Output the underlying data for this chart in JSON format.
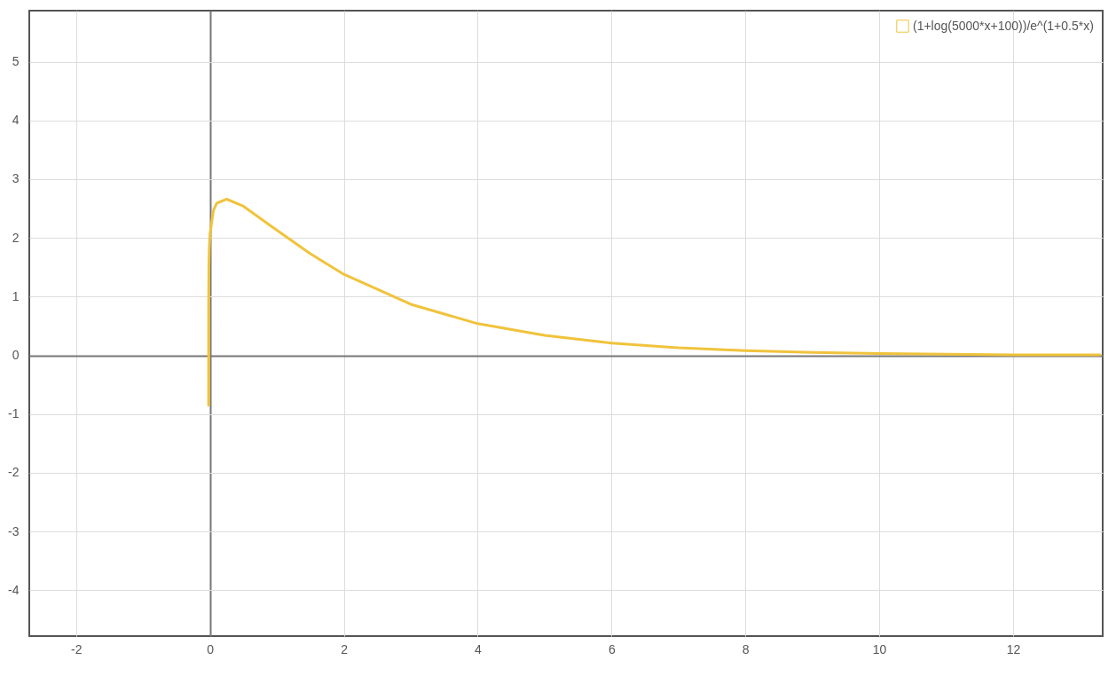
{
  "chart_data": {
    "type": "line",
    "legend": "top right",
    "grid": true,
    "marker": "none",
    "line_style": "solid",
    "xlim": [
      -2.7,
      13.34
    ],
    "ylim": [
      -4.78,
      5.87
    ],
    "xticks": [
      -2,
      0,
      2,
      4,
      6,
      8,
      10,
      12
    ],
    "yticks": [
      -4,
      -3,
      -2,
      -1,
      0,
      1,
      2,
      3,
      4,
      5
    ],
    "x": [
      -0.02,
      -0.0198,
      -0.019,
      -0.015,
      -0.01,
      0,
      0.05,
      0.1,
      0.25,
      0.5,
      1,
      1.5,
      2,
      3,
      4,
      5,
      6,
      7,
      8,
      9,
      10,
      11,
      12,
      13.3
    ],
    "series": [
      {
        "name": "(1+log(5000*x+100))/e^(1+0.5*x)",
        "color": "#f0c33c",
        "values": [
          -0.85,
          0.37,
          0.97,
          1.56,
          1.82,
          2.06,
          2.46,
          2.59,
          2.66,
          2.54,
          2.13,
          1.73,
          1.38,
          0.87,
          0.54,
          0.34,
          0.21,
          0.13,
          0.08,
          0.05,
          0.03,
          0.02,
          0.01,
          0.01
        ]
      }
    ]
  }
}
